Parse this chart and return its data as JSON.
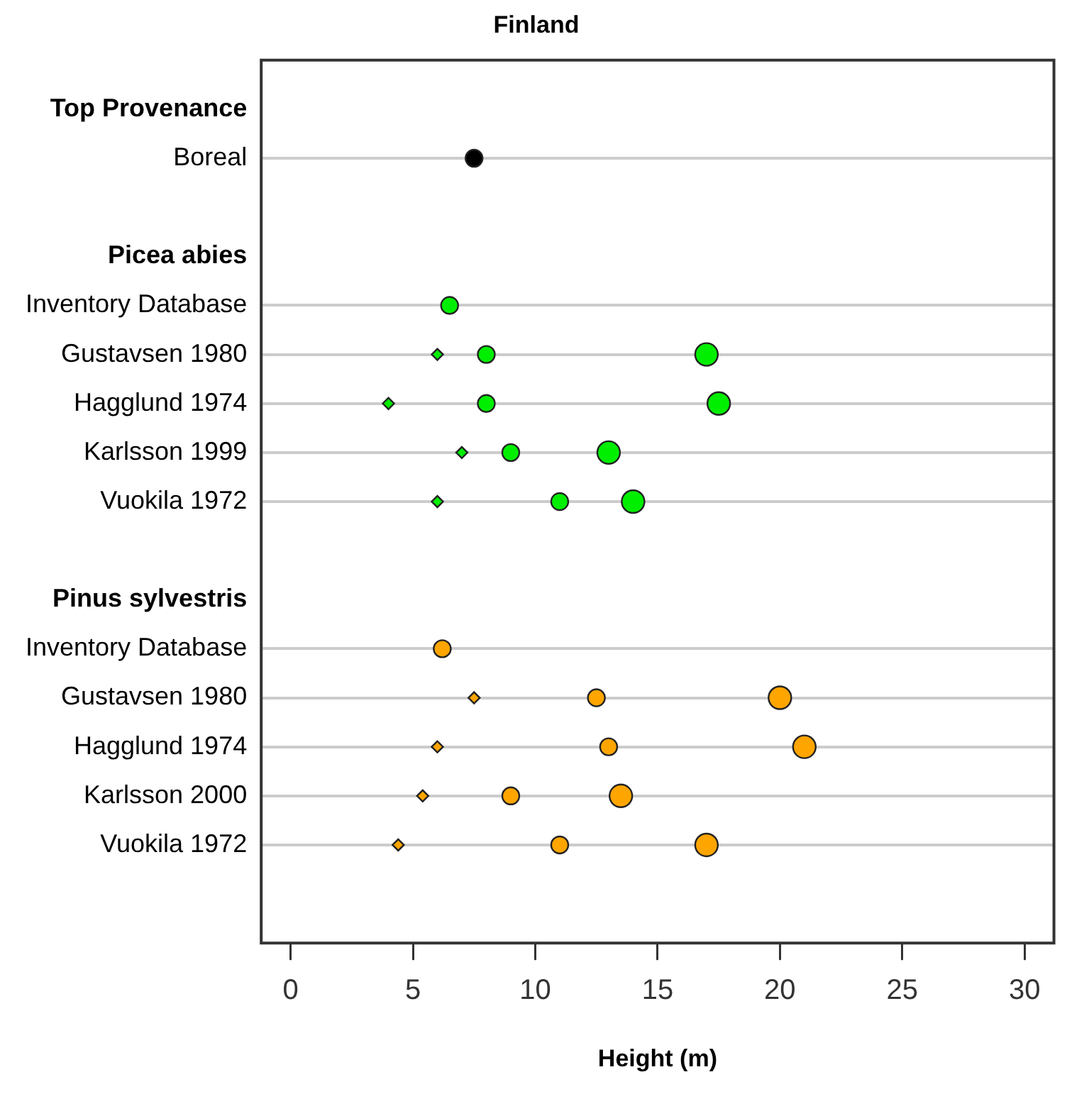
{
  "chart_data": {
    "type": "scatter",
    "title": "Finland",
    "xlabel": "Height (m)",
    "orientation": "horizontal",
    "categories": [
      "Top Provenance",
      "Boreal",
      null,
      "Picea abies",
      "Inventory Database",
      "Gustavsen 1980",
      "Hagglund 1974",
      "Karlsson 1999",
      "Vuokila 1972",
      null,
      "Pinus sylvestris",
      "Inventory Database",
      "Gustavsen 1980",
      "Hagglund 1974",
      "Karlsson 2000",
      "Vuokila 1972"
    ],
    "xlim": [
      -1.2,
      31.2
    ],
    "xticks": [
      0,
      5,
      10,
      15,
      20,
      25,
      30
    ],
    "grid": "y",
    "legend": false,
    "series": [
      {
        "marker": "diamond",
        "values": [
          null,
          null,
          null,
          null,
          null,
          6,
          4,
          7,
          6,
          null,
          null,
          null,
          7.5,
          6,
          5.4,
          4.4
        ],
        "colors": [
          null,
          null,
          null,
          null,
          null,
          "#00ee00",
          "#00ee00",
          "#00ee00",
          "#00ee00",
          null,
          null,
          null,
          "#ffa500",
          "#ffa500",
          "#ffa500",
          "#ffa500"
        ]
      },
      {
        "marker": "circle",
        "values": [
          null,
          7.5,
          null,
          null,
          6.5,
          8,
          8,
          9,
          11,
          null,
          null,
          6.2,
          12.5,
          13,
          9,
          11
        ],
        "colors": [
          null,
          "#000000",
          null,
          null,
          "#00ee00",
          "#00ee00",
          "#00ee00",
          "#00ee00",
          "#00ee00",
          null,
          null,
          "#ffa500",
          "#ffa500",
          "#ffa500",
          "#ffa500",
          "#ffa500"
        ]
      },
      {
        "marker": "circle",
        "values": [
          null,
          null,
          null,
          null,
          null,
          17,
          17.5,
          13,
          14,
          null,
          null,
          null,
          20,
          21,
          13.5,
          17
        ],
        "colors": [
          null,
          null,
          null,
          null,
          null,
          "#00ee00",
          "#00ee00",
          "#00ee00",
          "#00ee00",
          null,
          null,
          null,
          "#ffa500",
          "#ffa500",
          "#ffa500",
          "#ffa500"
        ]
      }
    ]
  }
}
